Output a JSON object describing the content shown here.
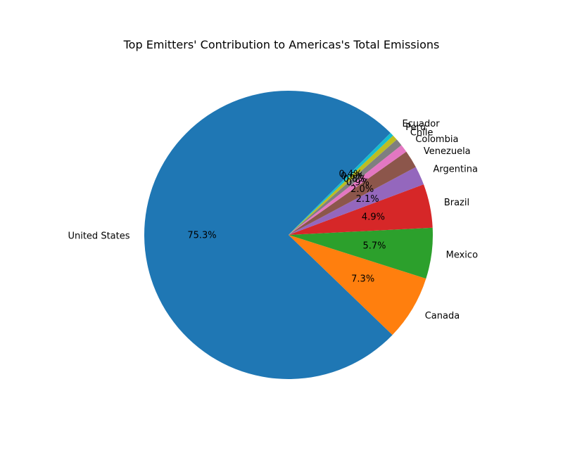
{
  "chart_data": {
    "type": "pie",
    "title": "Top Emitters' Contribution to Americas's Total Emissions",
    "autopct_format": "{v}%",
    "slices": [
      {
        "label": "United States",
        "value": 75.3,
        "pct_text": "75.3%",
        "color": "#1f77b4"
      },
      {
        "label": "Canada",
        "value": 7.3,
        "pct_text": "7.3%",
        "color": "#ff7f0e"
      },
      {
        "label": "Mexico",
        "value": 5.7,
        "pct_text": "5.7%",
        "color": "#2ca02c"
      },
      {
        "label": "Brazil",
        "value": 4.9,
        "pct_text": "4.9%",
        "color": "#d62728"
      },
      {
        "label": "Argentina",
        "value": 2.1,
        "pct_text": "2.1%",
        "color": "#9467bd"
      },
      {
        "label": "Venezuela",
        "value": 2.0,
        "pct_text": "2.0%",
        "color": "#8c564b"
      },
      {
        "label": "Colombia",
        "value": 0.9,
        "pct_text": "0.9%",
        "color": "#e377c2"
      },
      {
        "label": "Chile",
        "value": 0.8,
        "pct_text": "0.8%",
        "color": "#7f7f7f"
      },
      {
        "label": "Peru",
        "value": 0.6,
        "pct_text": "0.6%",
        "color": "#bcbd22"
      },
      {
        "label": "Ecuador",
        "value": 0.4,
        "pct_text": "0.4%",
        "color": "#17becf"
      }
    ]
  }
}
